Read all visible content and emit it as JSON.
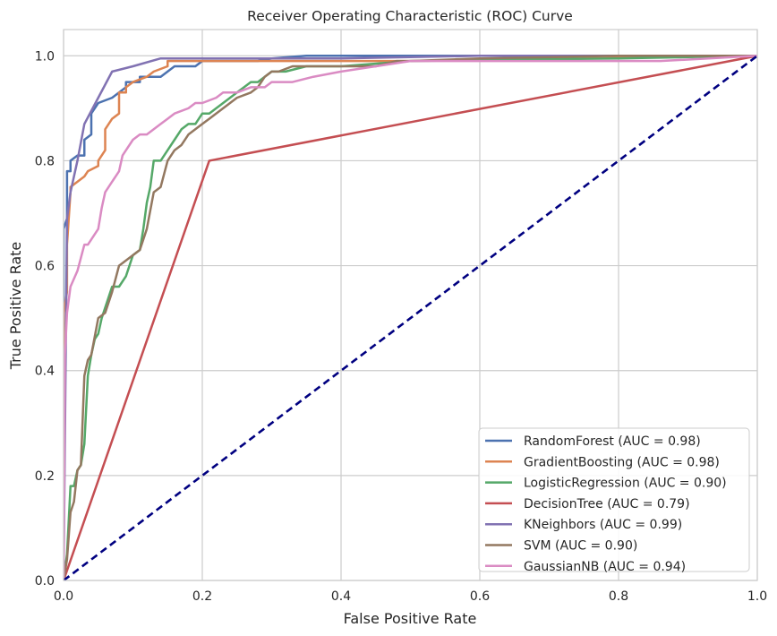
{
  "chart_data": {
    "type": "line",
    "title": "Receiver Operating Characteristic (ROC) Curve",
    "xlabel": "False Positive Rate",
    "ylabel": "True Positive Rate",
    "xlim": [
      0,
      1
    ],
    "ylim": [
      0,
      1.05
    ],
    "grid": true,
    "xticks": [
      0.0,
      0.2,
      0.4,
      0.6,
      0.8,
      1.0
    ],
    "yticks": [
      0.0,
      0.2,
      0.4,
      0.6,
      0.8,
      1.0
    ],
    "xtick_labels": [
      "0.0",
      "0.2",
      "0.4",
      "0.6",
      "0.8",
      "1.0"
    ],
    "ytick_labels": [
      "0.0",
      "0.2",
      "0.4",
      "0.6",
      "0.8",
      "1.0"
    ],
    "legend_position": "lower-right",
    "series": [
      {
        "name": "RandomForest (AUC = 0.98)",
        "color": "#4c72b0",
        "x": [
          0,
          0,
          0.005,
          0.005,
          0.01,
          0.01,
          0.02,
          0.02,
          0.03,
          0.03,
          0.04,
          0.04,
          0.05,
          0.07,
          0.08,
          0.08,
          0.09,
          0.09,
          0.11,
          0.11,
          0.14,
          0.15,
          0.16,
          0.17,
          0.19,
          0.2,
          0.28,
          0.3,
          0.35,
          0.42,
          0.6,
          0.82,
          0.86,
          1.0
        ],
        "y": [
          0,
          0.67,
          0.69,
          0.78,
          0.78,
          0.8,
          0.81,
          0.81,
          0.81,
          0.84,
          0.85,
          0.89,
          0.91,
          0.92,
          0.93,
          0.93,
          0.94,
          0.95,
          0.95,
          0.96,
          0.96,
          0.97,
          0.98,
          0.98,
          0.98,
          0.99,
          0.99,
          0.995,
          1.0,
          1.0,
          1.0,
          1.0,
          1.0,
          1.0
        ]
      },
      {
        "name": "GradientBoosting (AUC = 0.98)",
        "color": "#dd8452",
        "x": [
          0,
          0,
          0.005,
          0.005,
          0.01,
          0.01,
          0.02,
          0.02,
          0.03,
          0.035,
          0.05,
          0.05,
          0.06,
          0.06,
          0.07,
          0.07,
          0.08,
          0.08,
          0.09,
          0.09,
          0.1,
          0.1,
          0.12,
          0.13,
          0.13,
          0.15,
          0.15,
          0.2,
          0.5,
          1.0
        ],
        "y": [
          0,
          0.51,
          0.55,
          0.64,
          0.74,
          0.75,
          0.76,
          0.76,
          0.77,
          0.78,
          0.79,
          0.8,
          0.82,
          0.86,
          0.88,
          0.88,
          0.89,
          0.93,
          0.93,
          0.94,
          0.95,
          0.95,
          0.96,
          0.97,
          0.97,
          0.98,
          0.99,
          0.99,
          0.99,
          1.0
        ]
      },
      {
        "name": "LogisticRegression (AUC = 0.90)",
        "color": "#55a868",
        "x": [
          0,
          0.005,
          0.01,
          0.015,
          0.02,
          0.025,
          0.03,
          0.035,
          0.04,
          0.045,
          0.05,
          0.055,
          0.06,
          0.07,
          0.08,
          0.09,
          0.095,
          0.1,
          0.11,
          0.115,
          0.12,
          0.125,
          0.13,
          0.14,
          0.15,
          0.16,
          0.17,
          0.18,
          0.19,
          0.2,
          0.21,
          0.22,
          0.23,
          0.24,
          0.25,
          0.27,
          0.28,
          0.29,
          0.3,
          0.32,
          0.35,
          0.4,
          0.5,
          0.8,
          1.0
        ],
        "y": [
          0,
          0.05,
          0.18,
          0.18,
          0.21,
          0.22,
          0.26,
          0.39,
          0.43,
          0.46,
          0.47,
          0.5,
          0.52,
          0.56,
          0.56,
          0.58,
          0.6,
          0.62,
          0.63,
          0.67,
          0.72,
          0.75,
          0.8,
          0.8,
          0.82,
          0.84,
          0.86,
          0.87,
          0.87,
          0.89,
          0.89,
          0.9,
          0.91,
          0.92,
          0.93,
          0.95,
          0.95,
          0.96,
          0.97,
          0.97,
          0.98,
          0.98,
          0.99,
          0.995,
          1.0
        ]
      },
      {
        "name": "DecisionTree (AUC = 0.79)",
        "color": "#c44e52",
        "x": [
          0,
          0.21,
          1.0
        ],
        "y": [
          0,
          0.8,
          1.0
        ]
      },
      {
        "name": "KNeighbors (AUC = 0.99)",
        "color": "#8172b2",
        "x": [
          0,
          0.005,
          0.01,
          0.02,
          0.03,
          0.05,
          0.07,
          0.1,
          0.14,
          0.2,
          0.4,
          0.6,
          1.0
        ],
        "y": [
          0,
          0.69,
          0.74,
          0.8,
          0.87,
          0.92,
          0.97,
          0.98,
          0.995,
          0.995,
          0.995,
          1.0,
          1.0
        ]
      },
      {
        "name": "SVM (AUC = 0.90)",
        "color": "#937860",
        "x": [
          0,
          0.005,
          0.01,
          0.015,
          0.02,
          0.025,
          0.03,
          0.035,
          0.04,
          0.05,
          0.06,
          0.07,
          0.08,
          0.09,
          0.1,
          0.11,
          0.12,
          0.13,
          0.14,
          0.15,
          0.16,
          0.17,
          0.18,
          0.19,
          0.2,
          0.21,
          0.22,
          0.23,
          0.24,
          0.25,
          0.27,
          0.28,
          0.29,
          0.3,
          0.31,
          0.33,
          0.36,
          0.4,
          0.45,
          0.48,
          0.5,
          0.6,
          0.8,
          1.0
        ],
        "y": [
          0,
          0.04,
          0.13,
          0.15,
          0.21,
          0.22,
          0.39,
          0.42,
          0.43,
          0.5,
          0.51,
          0.55,
          0.6,
          0.61,
          0.62,
          0.63,
          0.67,
          0.74,
          0.75,
          0.8,
          0.82,
          0.83,
          0.85,
          0.86,
          0.87,
          0.88,
          0.89,
          0.9,
          0.91,
          0.92,
          0.93,
          0.94,
          0.96,
          0.97,
          0.97,
          0.98,
          0.98,
          0.98,
          0.98,
          0.99,
          0.99,
          0.995,
          1.0,
          1.0
        ]
      },
      {
        "name": "GaussianNB (AUC = 0.94)",
        "color": "#da8bc3",
        "x": [
          0,
          0.002,
          0.005,
          0.008,
          0.01,
          0.02,
          0.03,
          0.035,
          0.04,
          0.05,
          0.055,
          0.06,
          0.065,
          0.07,
          0.08,
          0.085,
          0.09,
          0.1,
          0.11,
          0.12,
          0.13,
          0.14,
          0.15,
          0.16,
          0.18,
          0.19,
          0.2,
          0.22,
          0.23,
          0.25,
          0.27,
          0.29,
          0.3,
          0.33,
          0.36,
          0.4,
          0.45,
          0.5,
          0.6,
          0.7,
          0.8,
          0.86,
          1.0
        ],
        "y": [
          0,
          0.43,
          0.51,
          0.54,
          0.56,
          0.59,
          0.64,
          0.64,
          0.65,
          0.67,
          0.71,
          0.74,
          0.75,
          0.76,
          0.78,
          0.81,
          0.82,
          0.84,
          0.85,
          0.85,
          0.86,
          0.87,
          0.88,
          0.89,
          0.9,
          0.91,
          0.91,
          0.92,
          0.93,
          0.93,
          0.94,
          0.94,
          0.95,
          0.95,
          0.96,
          0.97,
          0.98,
          0.99,
          0.99,
          0.99,
          0.99,
          0.99,
          1.0
        ]
      }
    ],
    "reference_line": {
      "name": "chance",
      "color": "#000080",
      "x": [
        0,
        1
      ],
      "y": [
        0,
        1
      ]
    }
  }
}
